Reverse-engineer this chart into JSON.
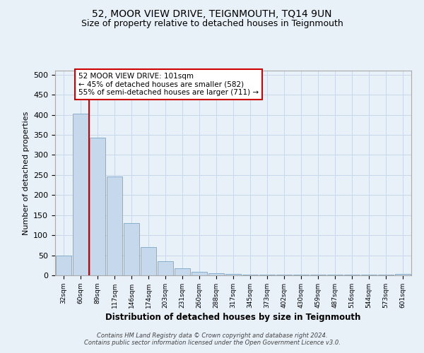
{
  "title": "52, MOOR VIEW DRIVE, TEIGNMOUTH, TQ14 9UN",
  "subtitle": "Size of property relative to detached houses in Teignmouth",
  "xlabel": "Distribution of detached houses by size in Teignmouth",
  "ylabel": "Number of detached properties",
  "footer_line1": "Contains HM Land Registry data © Crown copyright and database right 2024.",
  "footer_line2": "Contains public sector information licensed under the Open Government Licence v3.0.",
  "bar_labels": [
    "32sqm",
    "60sqm",
    "89sqm",
    "117sqm",
    "146sqm",
    "174sqm",
    "203sqm",
    "231sqm",
    "260sqm",
    "288sqm",
    "317sqm",
    "345sqm",
    "373sqm",
    "402sqm",
    "430sqm",
    "459sqm",
    "487sqm",
    "516sqm",
    "544sqm",
    "573sqm",
    "601sqm"
  ],
  "bar_values": [
    50,
    402,
    343,
    246,
    130,
    70,
    36,
    17,
    8,
    5,
    3,
    2,
    1,
    1,
    1,
    1,
    1,
    1,
    1,
    1,
    4
  ],
  "bar_color": "#c5d8ec",
  "bar_edge_color": "#7ba7c9",
  "grid_color": "#c8d8ea",
  "bg_color": "#e8f0f8",
  "red_line_x": 1.5,
  "annotation_line1": "52 MOOR VIEW DRIVE: 101sqm",
  "annotation_line2": "← 45% of detached houses are smaller (582)",
  "annotation_line3": "55% of semi-detached houses are larger (711) →",
  "annotation_box_color": "#ffffff",
  "annotation_box_edge": "#cc0000",
  "ylim": [
    0,
    510
  ],
  "yticks": [
    0,
    50,
    100,
    150,
    200,
    250,
    300,
    350,
    400,
    450,
    500
  ],
  "title_fontsize": 10,
  "subtitle_fontsize": 9
}
